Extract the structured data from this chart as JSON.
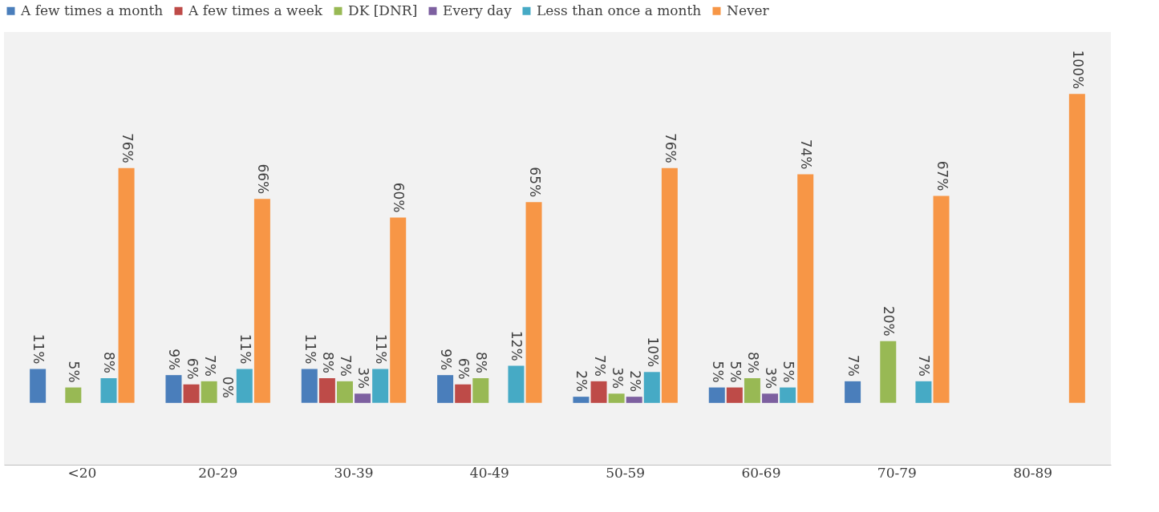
{
  "chart_data": {
    "type": "bar",
    "categories": [
      "<20",
      "20-29",
      "30-39",
      "40-49",
      "50-59",
      "60-69",
      "70-79",
      "80-89"
    ],
    "series": [
      {
        "name": "A few times a month",
        "color": "#4a7ebb",
        "values": [
          11,
          9,
          11,
          9,
          2,
          5,
          7,
          null
        ],
        "value_labels": [
          "11%",
          "9%",
          "11%",
          "9%",
          "2%",
          "5%",
          "7%",
          null
        ]
      },
      {
        "name": "A few times a week",
        "color": "#be4b48",
        "values": [
          null,
          6,
          8,
          6,
          7,
          5,
          null,
          null
        ],
        "value_labels": [
          null,
          "6%",
          "8%",
          "6%",
          "7%",
          "5%",
          null,
          null
        ]
      },
      {
        "name": "DK [DNR]",
        "color": "#98b954",
        "values": [
          5,
          7,
          7,
          8,
          3,
          8,
          20,
          null
        ],
        "value_labels": [
          "5%",
          "7%",
          "7%",
          "8%",
          "3%",
          "8%",
          "20%",
          null
        ]
      },
      {
        "name": "Every day",
        "color": "#7d60a0",
        "values": [
          null,
          0,
          3,
          null,
          2,
          3,
          null,
          null
        ],
        "value_labels": [
          null,
          "0%",
          "3%",
          null,
          "2%",
          "3%",
          null,
          null
        ]
      },
      {
        "name": "Less than once a month",
        "color": "#46aac5",
        "values": [
          8,
          11,
          11,
          12,
          10,
          5,
          7,
          null
        ],
        "value_labels": [
          "8%",
          "11%",
          "11%",
          "12%",
          "10%",
          "5%",
          "7%",
          null
        ]
      },
      {
        "name": "Never",
        "color": "#f79646",
        "values": [
          76,
          66,
          60,
          65,
          76,
          74,
          67,
          100
        ],
        "value_labels": [
          "76%",
          "66%",
          "60%",
          "65%",
          "76%",
          "74%",
          "67%",
          "100%"
        ]
      }
    ],
    "legend": "top",
    "grid": false,
    "tick_labels": "x"
  }
}
